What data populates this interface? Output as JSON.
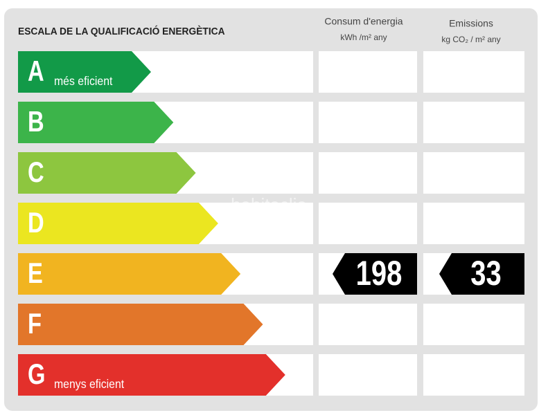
{
  "header": {
    "title": "ESCALA DE LA QUALIFICACIÓ ENERGÈTICA",
    "columns": [
      {
        "title": "Consum d'energia",
        "unit": "kWh /m² any"
      },
      {
        "title": "Emissions",
        "unit": "kg CO₂ / m² any"
      }
    ]
  },
  "rows": [
    {
      "letter": "A",
      "note": "més eficient"
    },
    {
      "letter": "B"
    },
    {
      "letter": "C"
    },
    {
      "letter": "D"
    },
    {
      "letter": "E",
      "values": [
        198,
        33
      ]
    },
    {
      "letter": "F"
    },
    {
      "letter": "G",
      "note": "menys eficient"
    }
  ],
  "watermark": "habitaclia"
}
